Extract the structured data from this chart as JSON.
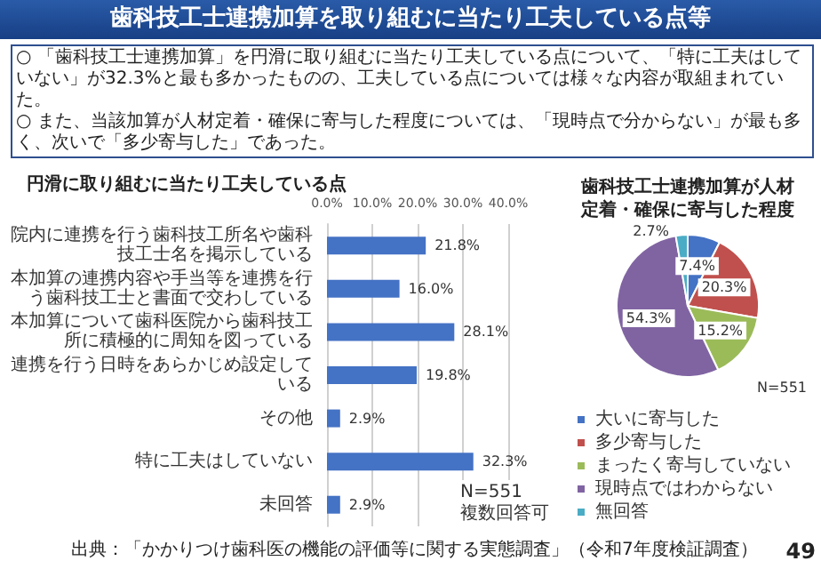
{
  "chart_data": [
    {
      "type": "bar",
      "orientation": "horizontal",
      "title": "円滑に取り組むに当たり工夫している点",
      "categories": [
        "院内に連携を行う歯科技工所名や歯科技工士名を掲示している",
        "本加算の連携内容や手当等を連携を行う歯科技工士と書面で交わしている",
        "本加算について歯科医院から歯科技工所に積極的に周知を図っている",
        "連携を行う日時をあらかじめ設定している",
        "その他",
        "特に工夫はしていない",
        "未回答"
      ],
      "values": [
        21.8,
        16.0,
        28.1,
        19.8,
        2.9,
        32.3,
        2.9
      ],
      "value_labels": [
        "21.8%",
        "16.0%",
        "28.1%",
        "19.8%",
        "2.9%",
        "32.3%",
        "2.9%"
      ],
      "color": "#4472c4",
      "xlim": [
        0,
        40
      ],
      "xticks": [
        {
          "value": 0,
          "label": "0.0%"
        },
        {
          "value": 10,
          "label": "10.0%"
        },
        {
          "value": 20,
          "label": "20.0%"
        },
        {
          "value": 30,
          "label": "30.0%"
        },
        {
          "value": 40,
          "label": "40.0%"
        }
      ],
      "grid": "x",
      "annotations": [
        "歯科技工士連携加算を取り組むに当たり工夫している点等",
        "○ 「歯科技工士連携加算」を円滑に取り組むに当たり工夫している点について、「特に工夫はしていない」が32.3%と最も多かったものの、工夫している点については様々な内容が取組まれていた。",
        "○ また、当該加算が人材定着・確保に寄与した程度については、「現時点で分からない」が最も多く、次いで「多少寄与した」であった。",
        "N=551\n複数回答可"
      ]
    },
    {
      "type": "pie",
      "title": "歯科技工士連携加算が人材定着・確保に寄与した程度",
      "categories": [
        "大いに寄与した",
        "多少寄与した",
        "まったく寄与していない",
        "現時点ではわからない",
        "無回答"
      ],
      "values": [
        7.4,
        20.3,
        15.2,
        54.3,
        2.7
      ],
      "value_labels": [
        "7.4%",
        "20.3%",
        "15.2%",
        "54.3%",
        "2.7%"
      ],
      "colors": [
        "#4472c4",
        "#c0504d",
        "#9bbb59",
        "#8064a2",
        "#4bacc6"
      ],
      "legend": "bottom",
      "annotations": [
        "N=551",
        "出典：「かかりつけ歯科医の機能の評価等に関する実態調査」（令和7年度検証調査）",
        "49"
      ]
    }
  ]
}
